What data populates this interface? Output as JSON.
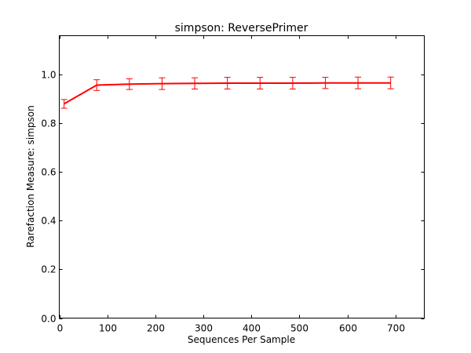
{
  "chart_data": {
    "type": "line",
    "title": "simpson: ReversePrimer",
    "xlabel": "Sequences Per Sample",
    "ylabel": "Rarefaction Measure: simpson",
    "xlim": [
      0,
      760
    ],
    "ylim": [
      0.0,
      1.16
    ],
    "xticks": [
      0,
      100,
      200,
      300,
      400,
      500,
      600,
      700
    ],
    "yticks": [
      0.0,
      0.2,
      0.4,
      0.6,
      0.8,
      1.0
    ],
    "xtick_labels": [
      "0",
      "100",
      "200",
      "300",
      "400",
      "500",
      "600",
      "700"
    ],
    "ytick_labels": [
      "0.0",
      "0.2",
      "0.4",
      "0.6",
      "0.8",
      "1.0"
    ],
    "grid": false,
    "series": [
      {
        "color": "#ff0000",
        "x": [
          10,
          78,
          146,
          214,
          282,
          350,
          418,
          486,
          554,
          622,
          690
        ],
        "y": [
          0.88,
          0.957,
          0.961,
          0.963,
          0.964,
          0.965,
          0.965,
          0.965,
          0.966,
          0.966,
          0.966
        ],
        "err": [
          0.018,
          0.022,
          0.022,
          0.024,
          0.023,
          0.024,
          0.024,
          0.024,
          0.023,
          0.024,
          0.024
        ]
      }
    ]
  }
}
